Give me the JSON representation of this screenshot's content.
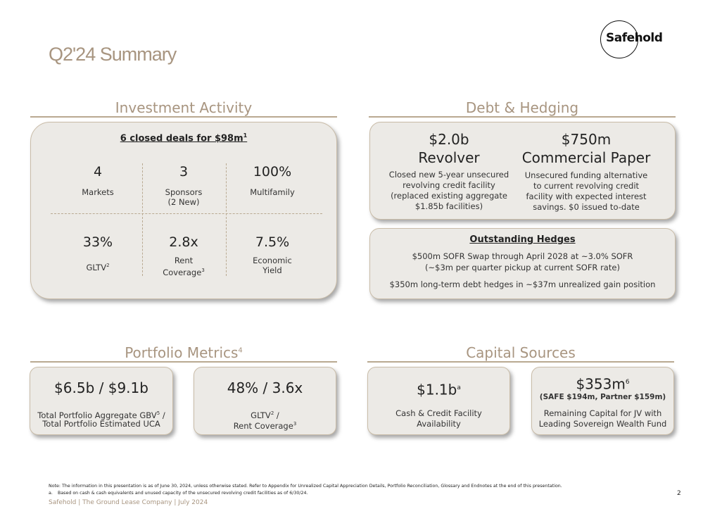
{
  "header": {
    "title": "Q2'24 Summary",
    "logo_text": "Safehold"
  },
  "investment": {
    "title": "Investment Activity",
    "headline": "6 closed deals for $98m",
    "headline_note": "1",
    "stats": [
      {
        "value": "4",
        "label": "Markets",
        "label2": ""
      },
      {
        "value": "3",
        "label": "Sponsors",
        "label2": "(2 New)"
      },
      {
        "value": "100%",
        "label": "Multifamily",
        "label2": ""
      },
      {
        "value": "33%",
        "label": "GLTV",
        "note": "2",
        "label2": ""
      },
      {
        "value": "2.8x",
        "label": "Rent",
        "label2": "Coverage",
        "note": "3"
      },
      {
        "value": "7.5%",
        "label": "Economic",
        "label2": "Yield"
      }
    ]
  },
  "debt": {
    "title": "Debt & Hedging",
    "revolver": {
      "value": "$2.0b",
      "name": "Revolver",
      "lines": [
        "Closed new 5-year unsecured",
        "revolving credit facility",
        "(replaced existing aggregate",
        "$1.85b facilities)"
      ]
    },
    "cp": {
      "value": "$750m",
      "name": "Commercial Paper",
      "lines": [
        "Unsecured funding alternative",
        "to current revolving credit",
        "facility with expected interest",
        "savings. $0 issued to-date"
      ]
    },
    "hedges": {
      "title": "Outstanding Hedges",
      "line1": "$500m SOFR Swap through April 2028 at ~3.0% SOFR",
      "line2": "(~$3m per quarter pickup at current SOFR rate)",
      "line3": "$350m long-term debt hedges in ~$37m unrealized gain position"
    }
  },
  "portfolio": {
    "title": "Portfolio Metrics",
    "title_note": "4",
    "card1": {
      "value": "$6.5b / $9.1b",
      "line1a": "Total Portfolio Aggregate GBV",
      "line1_note": "5",
      "line1b": " /",
      "line2": "Total Portfolio Estimated UCA"
    },
    "card2": {
      "value": "48% / 3.6x",
      "line1a": "GLTV",
      "line1_note": "2",
      "line1b": " /",
      "line2a": "Rent Coverage",
      "line2_note": "3"
    }
  },
  "capital": {
    "title": "Capital Sources",
    "card1": {
      "value": "$1.1b",
      "value_note": "a",
      "line1": "Cash & Credit Facility",
      "line2": "Availability"
    },
    "card2": {
      "value": "$353m",
      "value_note": "6",
      "sub": "(SAFE $194m, Partner $159m)",
      "line1": "Remaining Capital for JV with",
      "line2": "Leading Sovereign Wealth Fund"
    }
  },
  "footnotes": {
    "note": "Note: The information in this presentation is as of June 30, 2024, unless otherwise stated. Refer to Appendix for Unrealized Capital Appreciation Details, Portfolio Reconciliation, Glossary and Endnotes at the end of this presentation.",
    "a_label": "a.",
    "a_text": "Based on cash & cash equivalents and unused capacity of the unsecured revolving credit facilities as of 6/30/24.",
    "footer": "Safehold | The Ground Lease Company | July 2024",
    "page": "2"
  },
  "colors": {
    "accent": "#a89580",
    "card_bg": "#eceae6",
    "rule": "#b9a991"
  }
}
